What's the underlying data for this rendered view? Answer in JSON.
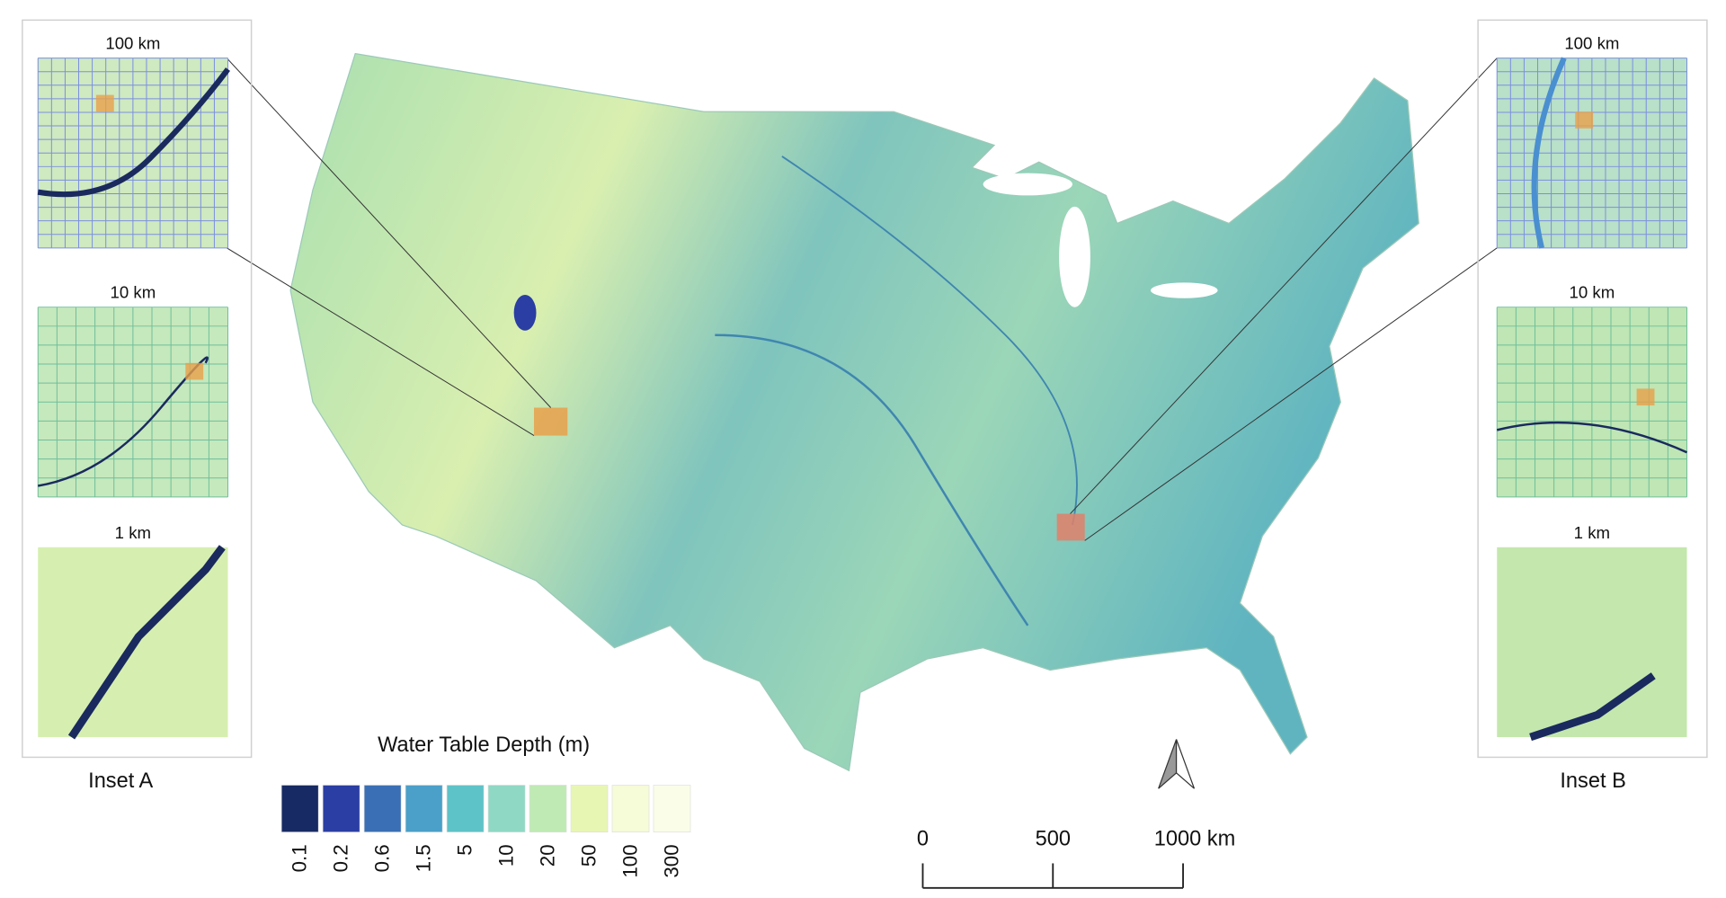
{
  "insets": [
    {
      "title": "Inset A",
      "levels": [
        "100 km",
        "10 km",
        "1 km"
      ]
    },
    {
      "title": "Inset B",
      "levels": [
        "100 km",
        "10 km",
        "1 km"
      ]
    }
  ],
  "legend": {
    "title": "Water Table Depth (m)",
    "classes": [
      {
        "value": 0.1,
        "color": "#172a63"
      },
      {
        "value": 0.2,
        "color": "#2b3ea3"
      },
      {
        "value": 0.6,
        "color": "#3a6fb5"
      },
      {
        "value": 1.5,
        "color": "#4aa0c8"
      },
      {
        "value": 5,
        "color": "#5dc3c8"
      },
      {
        "value": 10,
        "color": "#8ed8c4"
      },
      {
        "value": 20,
        "color": "#bfeab4"
      },
      {
        "value": 50,
        "color": "#e8f6b4"
      },
      {
        "value": 100,
        "color": "#f6fbd8"
      },
      {
        "value": 300,
        "color": "#fafde8"
      }
    ]
  },
  "scale_bar": {
    "ticks": [
      0,
      500,
      {
        "value": 1000,
        "label": "1000 km"
      }
    ],
    "lim": [
      0,
      1000
    ]
  }
}
